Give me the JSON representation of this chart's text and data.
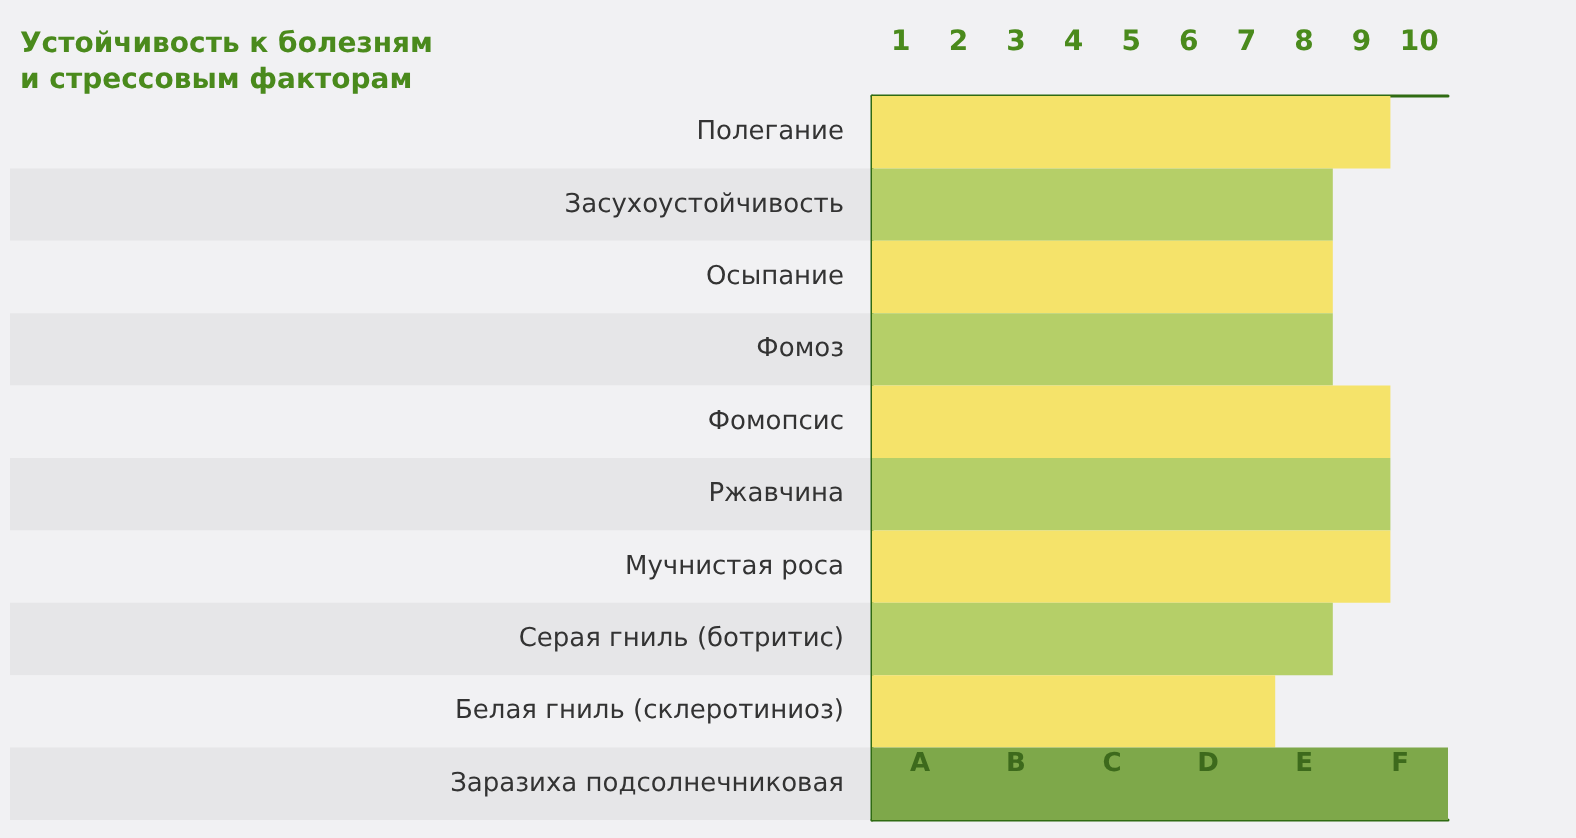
{
  "chart_data": {
    "type": "bar",
    "orientation": "horizontal",
    "title": "Устойчивость к болезням\nи стрессовым факторам",
    "categories": [
      "Полегание",
      "Засухоустойчивость",
      "Осыпание",
      "Фомоз",
      "Фомопсис",
      "Ржавчина",
      "Мучнистая роса",
      "Серая гниль (ботритис)",
      "Белая гниль (склеротиниоз)",
      "Заразиха подсолнечниковая"
    ],
    "values": [
      9,
      8,
      8,
      8,
      9,
      9,
      9,
      8,
      7,
      10
    ],
    "colors": [
      "#f5e36a",
      "#b5cf68",
      "#f5e36a",
      "#b5cf68",
      "#f5e36a",
      "#b5cf68",
      "#f5e36a",
      "#b5cf68",
      "#f5e36a",
      "#7ea84a"
    ],
    "xlim": [
      0,
      10
    ],
    "xticks": [
      {
        "value": 0.5,
        "label": "1"
      },
      {
        "value": 1.5,
        "label": "2"
      },
      {
        "value": 2.5,
        "label": "3"
      },
      {
        "value": 3.5,
        "label": "4"
      },
      {
        "value": 4.5,
        "label": "5"
      },
      {
        "value": 5.5,
        "label": "6"
      },
      {
        "value": 6.5,
        "label": "7"
      },
      {
        "value": 7.5,
        "label": "8"
      },
      {
        "value": 8.5,
        "label": "9"
      },
      {
        "value": 9.5,
        "label": "10"
      }
    ],
    "annotations": [
      "A",
      "B",
      "C",
      "D",
      "E",
      "F"
    ],
    "grid": false
  }
}
